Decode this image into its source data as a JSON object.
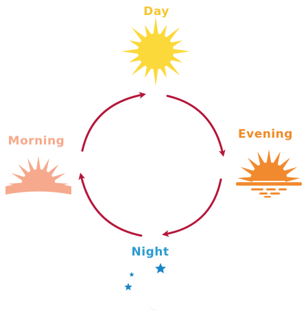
{
  "diagram": {
    "type": "cycle",
    "stages": [
      {
        "id": "day",
        "label": "Day",
        "icon": "sun-icon",
        "color": "#fcd93a",
        "label_color": "#f6c531"
      },
      {
        "id": "evening",
        "label": "Evening",
        "icon": "sunset-icon",
        "color": "#f18a2e",
        "label_color": "#ef8a26"
      },
      {
        "id": "night",
        "label": "Night",
        "icon": "moon-and-stars-icon",
        "color": "#1a86c6",
        "label_color": "#2b9bd0"
      },
      {
        "id": "morning",
        "label": "Morning",
        "icon": "sunrise-icon",
        "color": "#f6a98d",
        "label_color": "#f7a88a"
      }
    ],
    "arrows": [
      {
        "from": "day",
        "to": "evening"
      },
      {
        "from": "evening",
        "to": "night"
      },
      {
        "from": "night",
        "to": "morning"
      },
      {
        "from": "morning",
        "to": "day"
      }
    ],
    "arrow_color": "#b5163a"
  }
}
